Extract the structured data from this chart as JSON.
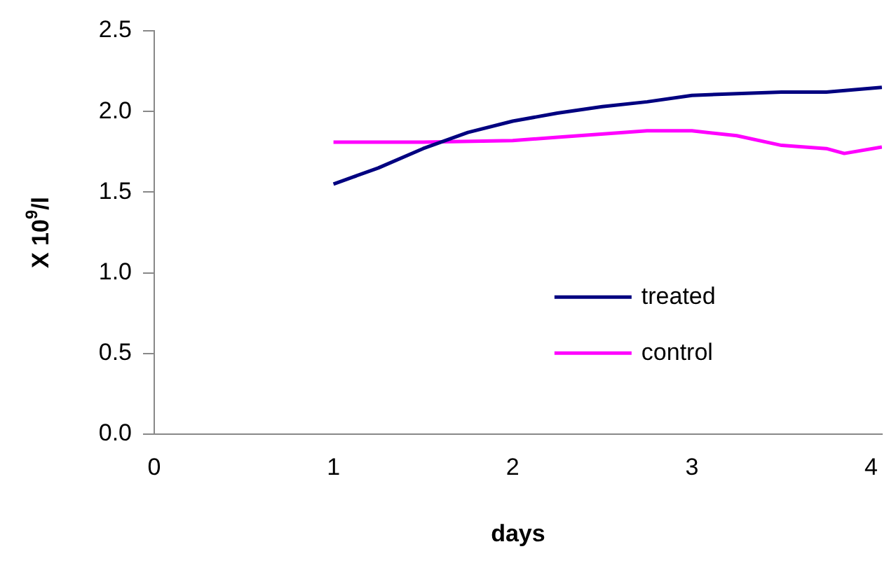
{
  "chart_data": {
    "type": "line",
    "xlabel": "days",
    "ylabel": "X 10$^{9}$/l",
    "xlim": [
      0,
      4.06
    ],
    "xticks": [
      0,
      1,
      2,
      3,
      4
    ],
    "ylim": [
      0,
      2.5
    ],
    "yticks": [
      {
        "value": 0,
        "label": "0.0"
      },
      {
        "value": 0.5,
        "label": "0.5"
      },
      {
        "value": 1,
        "label": "1.0"
      },
      {
        "value": 1.5,
        "label": "1.5"
      },
      {
        "value": 2,
        "label": "2.0"
      },
      {
        "value": 2.5,
        "label": "2.5"
      }
    ],
    "grid": false,
    "legend": "bottom right",
    "marker": "none",
    "line_style": "solid",
    "series": [
      {
        "name": "treated",
        "color": "#000080",
        "x": [
          1,
          1.25,
          1.5,
          1.75,
          2,
          2.25,
          2.5,
          2.75,
          3,
          3.25,
          3.5,
          3.75,
          4.06
        ],
        "values": [
          1.55,
          1.65,
          1.77,
          1.87,
          1.94,
          1.99,
          2.03,
          2.06,
          2.1,
          2.11,
          2.12,
          2.12,
          2.15
        ]
      },
      {
        "name": "control",
        "color": "#ff00ff",
        "x": [
          1,
          1.5,
          2,
          2.25,
          2.75,
          3,
          3.25,
          3.5,
          3.75,
          3.85,
          4.06
        ],
        "values": [
          1.81,
          1.81,
          1.82,
          1.84,
          1.88,
          1.88,
          1.85,
          1.79,
          1.77,
          1.74,
          1.78
        ]
      }
    ]
  }
}
